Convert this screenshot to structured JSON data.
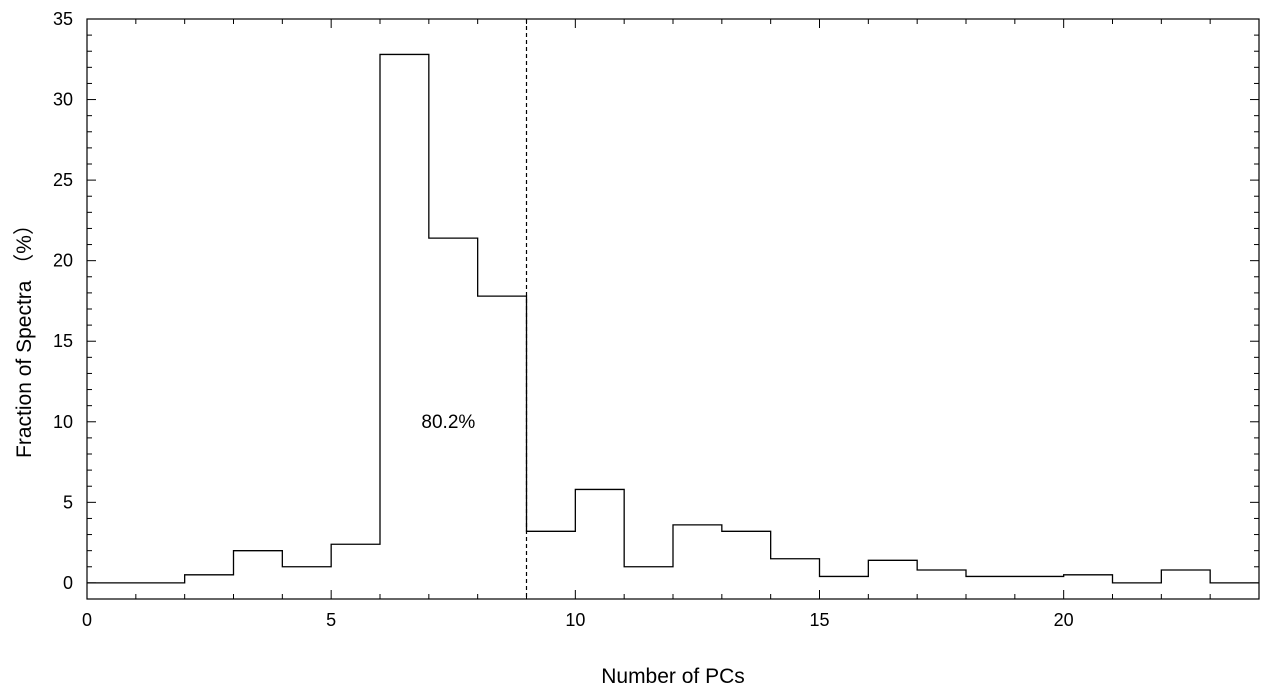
{
  "chart_data": {
    "type": "histogram",
    "title": "",
    "xlabel": "Number of PCs",
    "ylabel": "Fraction of Spectra （%）",
    "xlim": [
      0,
      24
    ],
    "ylim": [
      -1,
      35
    ],
    "x_ticks": [
      0,
      5,
      10,
      15,
      20
    ],
    "y_ticks": [
      0,
      5,
      10,
      15,
      20,
      25,
      30,
      35
    ],
    "x_minor_step": 1,
    "y_minor_step": 1,
    "grid": false,
    "legend": "none",
    "bins": [
      {
        "x0": 0,
        "x1": 2,
        "value": 0
      },
      {
        "x0": 2,
        "x1": 3,
        "value": 0.5
      },
      {
        "x0": 3,
        "x1": 4,
        "value": 2.0
      },
      {
        "x0": 4,
        "x1": 5,
        "value": 1.0
      },
      {
        "x0": 5,
        "x1": 6,
        "value": 2.4
      },
      {
        "x0": 6,
        "x1": 7,
        "value": 32.8
      },
      {
        "x0": 7,
        "x1": 8,
        "value": 21.4
      },
      {
        "x0": 8,
        "x1": 9,
        "value": 17.8
      },
      {
        "x0": 9,
        "x1": 10,
        "value": 3.2
      },
      {
        "x0": 10,
        "x1": 11,
        "value": 5.8
      },
      {
        "x0": 11,
        "x1": 12,
        "value": 1.0
      },
      {
        "x0": 12,
        "x1": 13,
        "value": 3.6
      },
      {
        "x0": 13,
        "x1": 14,
        "value": 3.2
      },
      {
        "x0": 14,
        "x1": 15,
        "value": 1.5
      },
      {
        "x0": 15,
        "x1": 16,
        "value": 0.4
      },
      {
        "x0": 16,
        "x1": 17,
        "value": 1.4
      },
      {
        "x0": 17,
        "x1": 18,
        "value": 0.8
      },
      {
        "x0": 18,
        "x1": 20,
        "value": 0.4
      },
      {
        "x0": 20,
        "x1": 21,
        "value": 0.5
      },
      {
        "x0": 21,
        "x1": 22,
        "value": 0
      },
      {
        "x0": 22,
        "x1": 23,
        "value": 0.8
      },
      {
        "x0": 23,
        "x1": 24,
        "value": 0
      }
    ],
    "reference_line": {
      "x": 9,
      "style": "dashed"
    },
    "annotations": [
      {
        "text": "80.2%",
        "x": 7.4,
        "y": 10
      }
    ]
  }
}
